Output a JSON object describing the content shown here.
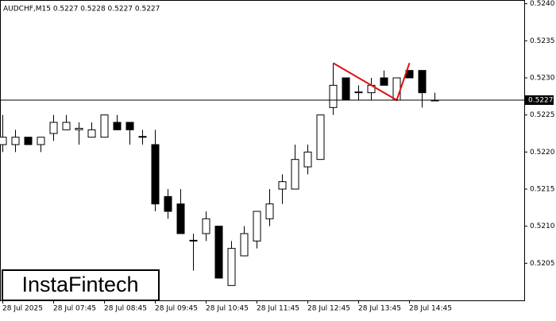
{
  "chart_data": {
    "type": "candlestick",
    "title": "AUDCHF,M15  0.5227 0.5228 0.5227 0.5227",
    "categories": [
      "28 Jul 2025",
      null,
      null,
      null,
      "28 Jul 07:45",
      null,
      null,
      null,
      "28 Jul 08:45",
      null,
      null,
      null,
      "28 Jul 09:45",
      null,
      null,
      null,
      "28 Jul 10:45",
      null,
      null,
      null,
      "28 Jul 11:45",
      null,
      null,
      null,
      "28 Jul 12:45",
      null,
      null,
      null,
      "28 Jul 13:45",
      null,
      null,
      null,
      "28 Jul 14:45",
      null,
      null
    ],
    "open": [
      0.5221,
      0.5221,
      0.5222,
      0.5221,
      0.52225,
      0.5223,
      0.5223,
      0.5222,
      0.5222,
      0.5224,
      0.5224,
      0.5222,
      0.5221,
      0.5214,
      0.5213,
      0.5208,
      0.5209,
      0.521,
      0.5202,
      0.5206,
      0.5208,
      0.5211,
      0.5215,
      0.5215,
      0.5218,
      0.5219,
      0.5226,
      0.523,
      0.5228,
      0.5228,
      0.523,
      0.5227,
      0.5231,
      0.5231,
      0.5227
    ],
    "high": [
      0.5225,
      0.5223,
      0.5222,
      0.5222,
      0.5225,
      0.5225,
      0.5224,
      0.5224,
      0.5225,
      0.5225,
      0.5224,
      0.5223,
      0.5223,
      0.5215,
      0.5215,
      0.5209,
      0.5212,
      0.521,
      0.5208,
      0.521,
      0.5212,
      0.5215,
      0.5217,
      0.5221,
      0.5221,
      0.5225,
      0.5232,
      0.523,
      0.5229,
      0.523,
      0.5231,
      0.523,
      0.5231,
      0.5231,
      0.5228
    ],
    "low": [
      0.522,
      0.522,
      0.5221,
      0.522,
      0.52215,
      0.5223,
      0.5221,
      0.5222,
      0.5222,
      0.5223,
      0.5221,
      0.5221,
      0.5212,
      0.5211,
      0.5209,
      0.5204,
      0.5208,
      0.5203,
      0.5202,
      0.5206,
      0.5207,
      0.521,
      0.5213,
      0.5215,
      0.5217,
      0.5219,
      0.5225,
      0.5227,
      0.5227,
      0.5227,
      0.5229,
      0.5227,
      0.523,
      0.5226,
      0.5227
    ],
    "close": [
      0.5222,
      0.5222,
      0.5221,
      0.5222,
      0.5224,
      0.5224,
      0.52232,
      0.5223,
      0.5225,
      0.5223,
      0.5223,
      0.52221,
      0.5213,
      0.5212,
      0.5209,
      0.52081,
      0.5211,
      0.5203,
      0.5207,
      0.5209,
      0.5212,
      0.5213,
      0.5216,
      0.5219,
      0.522,
      0.5225,
      0.5229,
      0.5227,
      0.52281,
      0.5229,
      0.5229,
      0.523,
      0.523,
      0.5228,
      0.5227
    ],
    "ylim": [
      0.52,
      0.52405
    ],
    "yticks": [
      {
        "value": 0.5205,
        "label": "0.5205"
      },
      {
        "value": 0.521,
        "label": "0.5210"
      },
      0.5215,
      {
        "value": 0.522,
        "label": "0.5220"
      },
      0.5225,
      {
        "value": 0.523,
        "label": "0.5230"
      },
      0.5235,
      {
        "value": 0.524,
        "label": "0.5240"
      }
    ],
    "current_price": {
      "value": 0.5227,
      "label": "0.5227"
    },
    "pattern": {
      "color": "#e01010",
      "indices": [
        26,
        31,
        32
      ],
      "values": [
        0.5232,
        0.5227,
        0.5232
      ]
    },
    "logo": "InstaFintech"
  }
}
